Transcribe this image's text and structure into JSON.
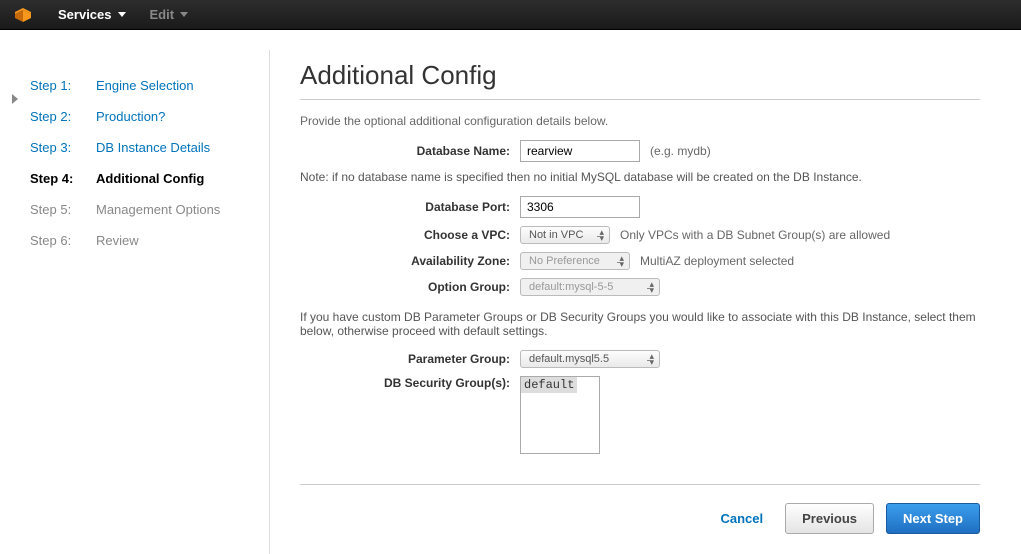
{
  "topbar": {
    "menu1": "Services",
    "menu2": "Edit"
  },
  "steps": [
    {
      "num": "Step 1:",
      "label": "Engine Selection",
      "state": "link"
    },
    {
      "num": "Step 2:",
      "label": "Production?",
      "state": "link"
    },
    {
      "num": "Step 3:",
      "label": "DB Instance Details",
      "state": "link"
    },
    {
      "num": "Step 4:",
      "label": "Additional Config",
      "state": "active"
    },
    {
      "num": "Step 5:",
      "label": "Management Options",
      "state": "dim"
    },
    {
      "num": "Step 6:",
      "label": "Review",
      "state": "dim"
    }
  ],
  "page": {
    "title": "Additional Config",
    "intro": "Provide the optional additional configuration details below.",
    "note1": "Note: if no database name is specified then no initial MySQL database will be created on the DB Instance.",
    "note2": "If you have custom DB Parameter Groups or DB Security Groups you would like to associate with this DB Instance, select them below, otherwise proceed with default settings."
  },
  "fields": {
    "databaseName": {
      "label": "Database Name:",
      "value": "rearview",
      "hint": "(e.g. mydb)"
    },
    "databasePort": {
      "label": "Database Port:",
      "value": "3306"
    },
    "vpc": {
      "label": "Choose a VPC:",
      "value": "Not in VPC",
      "hint": "Only VPCs with a DB Subnet Group(s) are allowed"
    },
    "az": {
      "label": "Availability Zone:",
      "value": "No Preference",
      "hint": "MultiAZ deployment selected"
    },
    "optionGroup": {
      "label": "Option Group:",
      "value": "default:mysql-5-5"
    },
    "paramGroup": {
      "label": "Parameter Group:",
      "value": "default.mysql5.5"
    },
    "secGroup": {
      "label": "DB Security Group(s):",
      "value": "default"
    }
  },
  "footer": {
    "cancel": "Cancel",
    "previous": "Previous",
    "next": "Next Step"
  },
  "colors": {
    "link": "#0073bb",
    "topbar_bg": "#1f1f1f",
    "primary_btn_top": "#3b9eed",
    "primary_btn_bottom": "#1f6fc2"
  }
}
